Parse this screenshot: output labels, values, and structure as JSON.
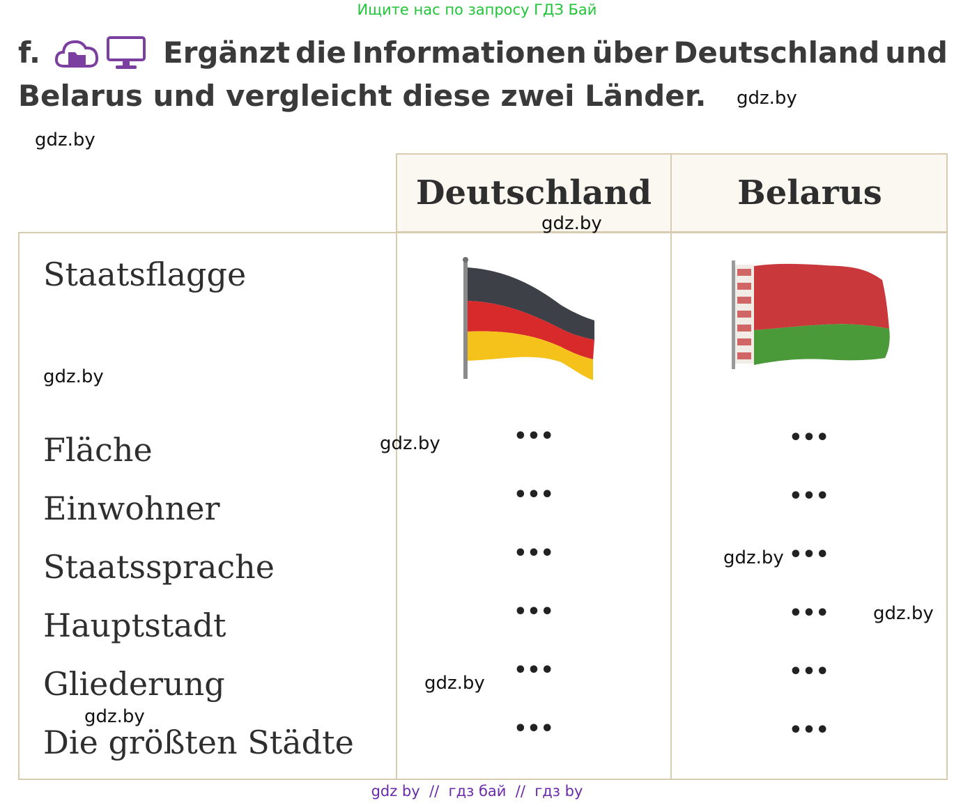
{
  "banner_top": "Ищите нас по запросу ГДЗ Бай",
  "task": {
    "label": "f.",
    "line1_words": [
      "Ergänzt",
      "die",
      "Informationen",
      "über",
      "Deutschland",
      "und"
    ],
    "line2": "Belarus und vergleicht diese zwei Länder.",
    "icons": [
      "cloud-folder-icon",
      "monitor-icon"
    ],
    "icon_color": "#7b3fa0"
  },
  "table": {
    "columns": [
      "Deutschland",
      "Belarus"
    ],
    "rows": [
      {
        "label": "Staatsflagge",
        "deutschland": "flag-germany",
        "belarus": "flag-belarus"
      },
      {
        "label": "Fläche",
        "deutschland": "•••",
        "belarus": "•••"
      },
      {
        "label": "Einwohner",
        "deutschland": "•••",
        "belarus": "•••"
      },
      {
        "label": "Staatssprache",
        "deutschland": "•••",
        "belarus": "•••"
      },
      {
        "label": "Hauptstadt",
        "deutschland": "•••",
        "belarus": "•••"
      },
      {
        "label": "Gliederung",
        "deutschland": "•••",
        "belarus": "•••"
      },
      {
        "label": "Die größten Städte",
        "deutschland": "•••",
        "belarus": "•••"
      }
    ],
    "border_color": "#d8ccb0",
    "header_bg": "#faf8f1"
  },
  "watermark": "gdz.by",
  "banner_bottom": "gdz by  //  гдз бай  //  гдз by"
}
